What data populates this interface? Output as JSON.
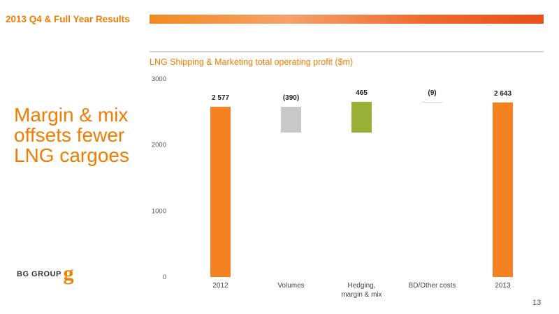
{
  "header": {
    "title": "2013 Q4 & Full Year Results"
  },
  "headline": {
    "lines": [
      "Margin & mix",
      "offsets fewer",
      "LNG cargoes"
    ]
  },
  "logo": {
    "text": "BG GROUP",
    "mark": "g",
    "color": "#f07c00"
  },
  "page": {
    "number": "13"
  },
  "chart_data": {
    "type": "bar",
    "subtype": "waterfall",
    "title": "LNG Shipping & Marketing total operating profit ($m)",
    "xlabel": "",
    "ylabel": "",
    "ylim": [
      0,
      3000
    ],
    "yticks": [
      "0",
      "1000",
      "2000",
      "3000"
    ],
    "grid": false,
    "categories": [
      {
        "label_lines": [
          "2012"
        ],
        "start": 0,
        "end": 2577,
        "label": "2 577",
        "color": "#f58220"
      },
      {
        "label_lines": [
          "Volumes"
        ],
        "start": 2577,
        "end": 2187,
        "label": "(390)",
        "color": "#c8c8c8"
      },
      {
        "label_lines": [
          "Hedging,",
          "margin & mix"
        ],
        "start": 2187,
        "end": 2652,
        "label": "465",
        "color": "#9aaf37"
      },
      {
        "label_lines": [
          "BD/Other costs"
        ],
        "start": 2652,
        "end": 2643,
        "label": "(9)",
        "color": "#c8c8c8"
      },
      {
        "label_lines": [
          "2013"
        ],
        "start": 0,
        "end": 2643,
        "label": "2 643",
        "color": "#f58220"
      }
    ]
  }
}
